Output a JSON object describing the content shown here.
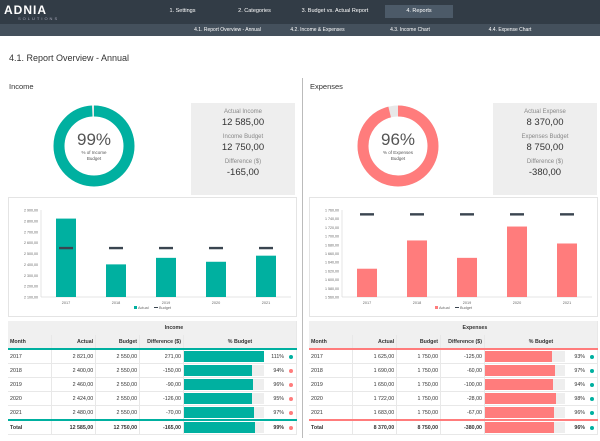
{
  "logo": {
    "name": "ADNIA",
    "sub": "SOLUTIONS"
  },
  "nav": [
    "1. Settings",
    "2. Categories",
    "3. Budget vs. Actual Report",
    "4. Reports"
  ],
  "subnav": [
    "4.1. Report Overview - Annual",
    "4.2. Income & Expenses",
    "4.3. Income Chart",
    "4.4. Expense Chart"
  ],
  "page_title": "4.1. Report Overview - Annual",
  "colors": {
    "income": "#00b0a0",
    "expense": "#ff7c7c",
    "budget": "#3a4550",
    "dot_good": "#00b0a0",
    "dot_bad": "#ff7c7c"
  },
  "income": {
    "section": "Income",
    "pct": "99%",
    "pct_value": 99,
    "pct_label": "% of Income Budget",
    "kpis": [
      {
        "label": "Actual Income",
        "value": "12 585,00"
      },
      {
        "label": "Income Budget",
        "value": "12 750,00"
      },
      {
        "label": "Difference ($)",
        "value": "-165,00"
      }
    ],
    "table": {
      "title": "Income",
      "headers": [
        "Month",
        "Actual",
        "Budget",
        "Difference ($)",
        "% Budget"
      ],
      "rows": [
        [
          "2017",
          "2 821,00",
          "2 550,00",
          "271,00",
          "111%"
        ],
        [
          "2018",
          "2 400,00",
          "2 550,00",
          "-150,00",
          "94%"
        ],
        [
          "2019",
          "2 460,00",
          "2 550,00",
          "-90,00",
          "96%"
        ],
        [
          "2020",
          "2 424,00",
          "2 550,00",
          "-126,00",
          "95%"
        ],
        [
          "2021",
          "2 480,00",
          "2 550,00",
          "-70,00",
          "97%"
        ]
      ],
      "total": [
        "Total",
        "12 585,00",
        "12 750,00",
        "-165,00",
        "99%"
      ],
      "status": [
        "good",
        "bad",
        "bad",
        "bad",
        "bad",
        "bad"
      ]
    }
  },
  "expenses": {
    "section": "Expenses",
    "pct": "96%",
    "pct_value": 96,
    "pct_label": "% of Expenses Budget",
    "kpis": [
      {
        "label": "Actual Expense",
        "value": "8 370,00"
      },
      {
        "label": "Expenses Budget",
        "value": "8 750,00"
      },
      {
        "label": "Difference ($)",
        "value": "-380,00"
      }
    ],
    "table": {
      "title": "Expenses",
      "headers": [
        "Month",
        "Actual",
        "Budget",
        "Difference ($)",
        "% Budget"
      ],
      "rows": [
        [
          "2017",
          "1 625,00",
          "1 750,00",
          "-125,00",
          "93%"
        ],
        [
          "2018",
          "1 690,00",
          "1 750,00",
          "-60,00",
          "97%"
        ],
        [
          "2019",
          "1 650,00",
          "1 750,00",
          "-100,00",
          "94%"
        ],
        [
          "2020",
          "1 722,00",
          "1 750,00",
          "-28,00",
          "98%"
        ],
        [
          "2021",
          "1 683,00",
          "1 750,00",
          "-67,00",
          "96%"
        ]
      ],
      "total": [
        "Total",
        "8 370,00",
        "8 750,00",
        "-380,00",
        "96%"
      ],
      "status": [
        "good",
        "good",
        "good",
        "good",
        "good",
        "good"
      ]
    }
  },
  "chart_data": [
    {
      "type": "bar",
      "categories": [
        "2017",
        "2018",
        "2019",
        "2020",
        "2021"
      ],
      "series": [
        {
          "name": "Actual",
          "values": [
            2821,
            2400,
            2460,
            2424,
            2480
          ]
        },
        {
          "name": "Budget",
          "values": [
            2550,
            2550,
            2550,
            2550,
            2550
          ]
        }
      ],
      "ylim": [
        2100,
        2900
      ],
      "yticks": [
        "2 100,00",
        "2 200,00",
        "2 300,00",
        "2 400,00",
        "2 500,00",
        "2 600,00",
        "2 700,00",
        "2 800,00",
        "2 900,00"
      ],
      "legend": "bottom"
    },
    {
      "type": "bar",
      "categories": [
        "2017",
        "2018",
        "2019",
        "2020",
        "2021"
      ],
      "series": [
        {
          "name": "Actual",
          "values": [
            1625,
            1690,
            1650,
            1722,
            1683
          ]
        },
        {
          "name": "Budget",
          "values": [
            1750,
            1750,
            1750,
            1750,
            1750
          ]
        }
      ],
      "ylim": [
        1560,
        1760
      ],
      "yticks": [
        "1 560,00",
        "1 580,00",
        "1 600,00",
        "1 620,00",
        "1 640,00",
        "1 660,00",
        "1 680,00",
        "1 700,00",
        "1 720,00",
        "1 740,00",
        "1 760,00"
      ],
      "legend": "bottom"
    }
  ]
}
